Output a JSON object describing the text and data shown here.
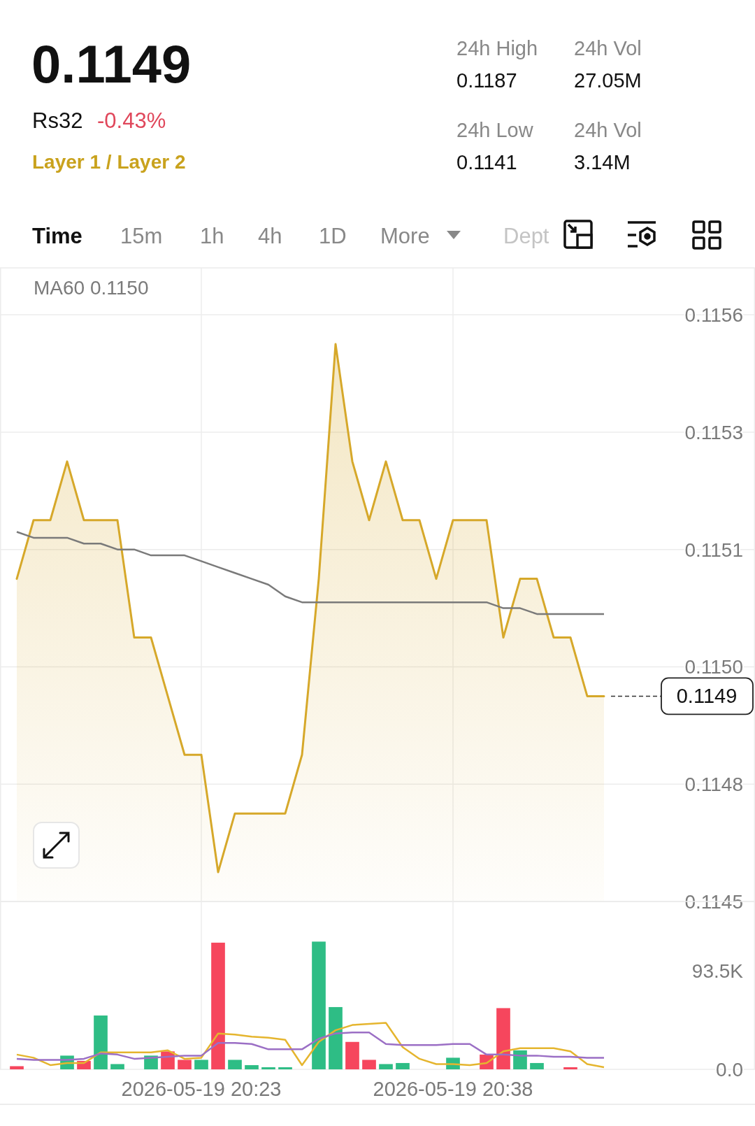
{
  "chart_data": [
    {
      "type": "other",
      "annotations": [
        "0.1149",
        "Rs32",
        "-0.43%",
        "Layer 1 / Layer 2",
        "24h High",
        "0.1187",
        "24h Vol",
        "27.05M",
        "24h Low",
        "0.1141",
        "24h Vol",
        "3.14M",
        "Time",
        "15m",
        "1h",
        "4h",
        "1D",
        "More",
        "Dept"
      ]
    },
    {
      "type": "area",
      "x": [
        "2026-05-19T20:12",
        "2026-05-19T20:13",
        "2026-05-19T20:14",
        "2026-05-19T20:15",
        "2026-05-19T20:16",
        "2026-05-19T20:17",
        "2026-05-19T20:18",
        "2026-05-19T20:19",
        "2026-05-19T20:20",
        "2026-05-19T20:21",
        "2026-05-19T20:22",
        "2026-05-19T20:23",
        "2026-05-19T20:24",
        "2026-05-19T20:25",
        "2026-05-19T20:26",
        "2026-05-19T20:27",
        "2026-05-19T20:28",
        "2026-05-19T20:29",
        "2026-05-19T20:30",
        "2026-05-19T20:31",
        "2026-05-19T20:32",
        "2026-05-19T20:33",
        "2026-05-19T20:34",
        "2026-05-19T20:35",
        "2026-05-19T20:36",
        "2026-05-19T20:37",
        "2026-05-19T20:38",
        "2026-05-19T20:39",
        "2026-05-19T20:40",
        "2026-05-19T20:41",
        "2026-05-19T20:42",
        "2026-05-19T20:43",
        "2026-05-19T20:44",
        "2026-05-19T20:45",
        "2026-05-19T20:46",
        "2026-05-19T20:47"
      ],
      "series": [
        {
          "type": "area",
          "color": "#d6a82a",
          "values": [
            0.1151,
            0.1152,
            0.1152,
            0.1153,
            0.1152,
            0.1152,
            0.1152,
            0.115,
            0.115,
            0.1149,
            0.1148,
            0.1148,
            0.1146,
            0.1147,
            0.1147,
            0.1147,
            0.1147,
            0.1148,
            0.1151,
            0.1155,
            0.1153,
            0.1152,
            0.1153,
            0.1152,
            0.1152,
            0.1151,
            0.1152,
            0.1152,
            0.1152,
            0.115,
            0.1151,
            0.1151,
            0.115,
            0.115,
            0.1149,
            0.1149
          ]
        },
        {
          "type": "line",
          "name": "MA60 0.1150",
          "color": "#7a7a7a",
          "values": [
            0.11518,
            0.11517,
            0.11517,
            0.11517,
            0.11516,
            0.11516,
            0.11515,
            0.11515,
            0.11514,
            0.11514,
            0.11514,
            0.11513,
            0.11512,
            0.11511,
            0.1151,
            0.11509,
            0.11507,
            0.11506,
            0.11506,
            0.11506,
            0.11506,
            0.11506,
            0.11506,
            0.11506,
            0.11506,
            0.11506,
            0.11506,
            0.11506,
            0.11506,
            0.11505,
            0.11505,
            0.11504,
            0.11504,
            0.11504,
            0.11504,
            0.11504
          ]
        }
      ],
      "xlim": [
        "2026-05-19T20:11",
        "2026-05-19T20:56"
      ],
      "xticks": [
        {
          "value": "2026-05-19T20:23",
          "label": null
        },
        {
          "value": "2026-05-19T20:38",
          "label": null
        }
      ],
      "ylim": [
        0.11455,
        0.11563
      ],
      "yticks": [
        {
          "value": 0.11455,
          "label": "0.1145"
        },
        {
          "value": 0.11475,
          "label": "0.1148"
        },
        {
          "value": 0.11495,
          "label": "0.1150"
        },
        {
          "value": 0.11515,
          "label": "0.1151"
        },
        {
          "value": 0.11535,
          "label": "0.1153"
        },
        {
          "value": 0.11555,
          "label": "0.1156"
        }
      ],
      "ref_lines": [
        {
          "axis": "y",
          "value": 0.1149,
          "label": "0.1149",
          "color": "#333333",
          "line_style": "dashed"
        }
      ],
      "grid": true,
      "legend": "top left",
      "tick_labels": "y"
    },
    {
      "type": "bar",
      "x": [
        "2026-05-19T20:12",
        "2026-05-19T20:13",
        "2026-05-19T20:14",
        "2026-05-19T20:15",
        "2026-05-19T20:16",
        "2026-05-19T20:17",
        "2026-05-19T20:18",
        "2026-05-19T20:19",
        "2026-05-19T20:20",
        "2026-05-19T20:21",
        "2026-05-19T20:22",
        "2026-05-19T20:23",
        "2026-05-19T20:24",
        "2026-05-19T20:25",
        "2026-05-19T20:26",
        "2026-05-19T20:27",
        "2026-05-19T20:28",
        "2026-05-19T20:29",
        "2026-05-19T20:30",
        "2026-05-19T20:31",
        "2026-05-19T20:32",
        "2026-05-19T20:33",
        "2026-05-19T20:34",
        "2026-05-19T20:35",
        "2026-05-19T20:36",
        "2026-05-19T20:37",
        "2026-05-19T20:38",
        "2026-05-19T20:39",
        "2026-05-19T20:40",
        "2026-05-19T20:41",
        "2026-05-19T20:42",
        "2026-05-19T20:43",
        "2026-05-19T20:44",
        "2026-05-19T20:45",
        "2026-05-19T20:46",
        "2026-05-19T20:47"
      ],
      "series": [
        {
          "type": "bar",
          "values": [
            3,
            null,
            null,
            13,
            8,
            51,
            5,
            null,
            13,
            17,
            9,
            9,
            120,
            9,
            4,
            2,
            2,
            null,
            121,
            59,
            26,
            9,
            5,
            6,
            null,
            null,
            11,
            null,
            14,
            58,
            18,
            6,
            null,
            2,
            null,
            null
          ],
          "colors": [
            "#f6465d",
            null,
            null,
            "#2ebd85",
            "#f6465d",
            "#2ebd85",
            "#2ebd85",
            null,
            "#2ebd85",
            "#f6465d",
            "#f6465d",
            "#2ebd85",
            "#f6465d",
            "#2ebd85",
            "#2ebd85",
            "#2ebd85",
            "#2ebd85",
            null,
            "#2ebd85",
            "#2ebd85",
            "#f6465d",
            "#f6465d",
            "#2ebd85",
            "#2ebd85",
            null,
            null,
            "#2ebd85",
            null,
            "#f6465d",
            "#f6465d",
            "#2ebd85",
            "#2ebd85",
            null,
            "#f6465d",
            null,
            null
          ]
        },
        {
          "type": "line",
          "color": "#e5b52e",
          "values": [
            14,
            11,
            4,
            6,
            6,
            16,
            16,
            16,
            16,
            18,
            10,
            11,
            34,
            33,
            31,
            30,
            28,
            4,
            26,
            37,
            42,
            43,
            44,
            21,
            10,
            5,
            5,
            4,
            6,
            17,
            20,
            20,
            20,
            17,
            5,
            2
          ]
        },
        {
          "type": "line",
          "color": "#9b6fc5",
          "values": [
            10,
            9,
            9,
            9,
            10,
            15,
            14,
            10,
            11,
            12,
            13,
            13,
            25,
            25,
            24,
            19,
            19,
            19,
            29,
            34,
            35,
            35,
            24,
            23,
            23,
            23,
            24,
            24,
            14,
            14,
            13,
            13,
            12,
            12,
            11,
            11
          ]
        }
      ],
      "xlim": [
        "2026-05-19T20:11",
        "2026-05-19T20:56"
      ],
      "xticks": [
        {
          "value": "2026-05-19T20:23",
          "label": "2026-05-19 20:23"
        },
        {
          "value": "2026-05-19T20:38",
          "label": "2026-05-19 20:38"
        }
      ],
      "ylim": [
        0,
        159
      ],
      "yticks": [
        {
          "value": 0,
          "label": "0.0"
        },
        {
          "value": 93.5,
          "label": "93.5K"
        }
      ],
      "grid": "x"
    }
  ]
}
